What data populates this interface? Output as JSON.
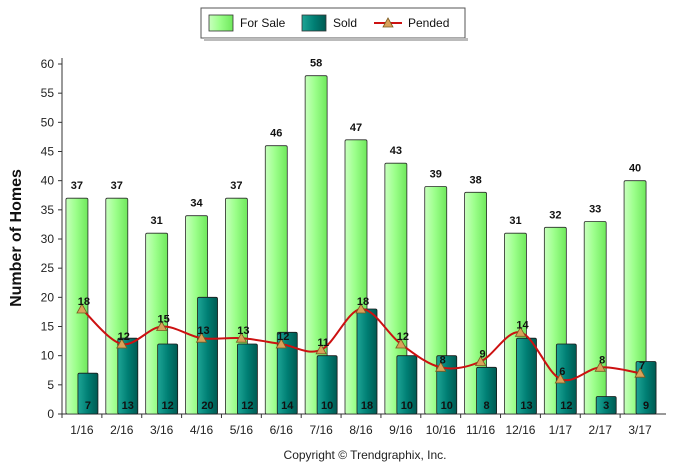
{
  "chart_data": {
    "type": "bar",
    "categories": [
      "1/16",
      "2/16",
      "3/16",
      "4/16",
      "5/16",
      "6/16",
      "7/16",
      "8/16",
      "9/16",
      "10/16",
      "11/16",
      "12/16",
      "1/17",
      "2/17",
      "3/17"
    ],
    "series": [
      {
        "name": "For Sale",
        "type": "bar",
        "color": "#99ff88",
        "values": [
          37,
          37,
          31,
          34,
          37,
          46,
          58,
          47,
          43,
          39,
          38,
          31,
          32,
          33,
          40
        ]
      },
      {
        "name": "Sold",
        "type": "bar",
        "color": "#007f74",
        "values": [
          7,
          13,
          12,
          20,
          12,
          14,
          10,
          18,
          10,
          10,
          8,
          13,
          12,
          3,
          9
        ]
      },
      {
        "name": "Pended",
        "type": "line",
        "color": "#cc1111",
        "marker_color": "#d9a25a",
        "values": [
          18,
          12,
          15,
          13,
          13,
          12,
          11,
          18,
          12,
          8,
          9,
          14,
          6,
          8,
          7
        ]
      }
    ],
    "ylabel": "Number of Homes",
    "ylim": [
      0,
      60
    ],
    "yticks": [
      0,
      5,
      10,
      15,
      20,
      25,
      30,
      35,
      40,
      45,
      50,
      55,
      60
    ],
    "legend_position": "top-center",
    "grid": false
  },
  "footer": "Copyright © Trendgraphix, Inc."
}
